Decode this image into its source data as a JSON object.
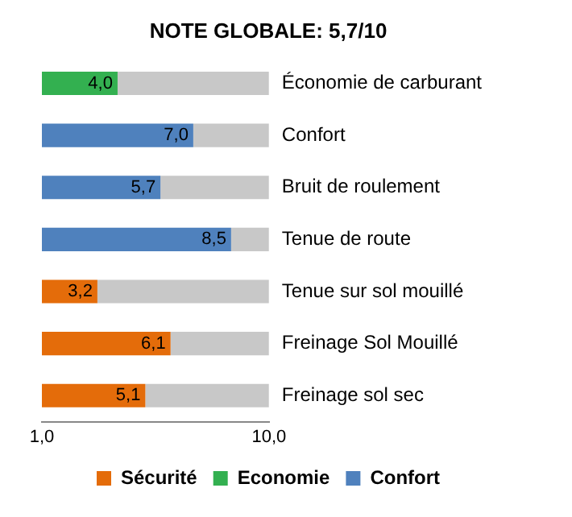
{
  "chart_data": {
    "type": "bar",
    "title": "NOTE GLOBALE: 5,7/10",
    "orientation": "horizontal",
    "stacked": true,
    "categories": [
      "Économie de carburant",
      "Confort",
      "Bruit de roulement",
      "Tenue de route",
      "Tenue sur sol mouillé",
      "Freinage Sol Mouillé",
      "Freinage sol sec"
    ],
    "series": [
      {
        "name": "Sécurité",
        "color": "#e46c0a",
        "values": [
          null,
          null,
          null,
          null,
          3.2,
          6.1,
          5.1
        ],
        "value_labels": [
          null,
          null,
          null,
          null,
          "3,2",
          "6,1",
          "5,1"
        ]
      },
      {
        "name": "Economie",
        "color": "#33b050",
        "values": [
          4.0,
          null,
          null,
          null,
          null,
          null,
          null
        ],
        "value_labels": [
          "4,0",
          null,
          null,
          null,
          null,
          null,
          null
        ]
      },
      {
        "name": "Confort",
        "color": "#4f81bd",
        "values": [
          null,
          7.0,
          5.7,
          8.5,
          null,
          null,
          null
        ],
        "value_labels": [
          null,
          "7,0",
          "5,7",
          "8,5",
          null,
          null,
          null
        ]
      },
      {
        "color": "#c8c8c8",
        "values": [
          6.0,
          3.0,
          4.3,
          1.5,
          6.8,
          3.9,
          4.9
        ]
      }
    ],
    "xlim": [
      1,
      10
    ],
    "xticks": [
      {
        "value": 1,
        "label": "1,0"
      },
      {
        "value": 10,
        "label": "10,0"
      }
    ],
    "grid": false,
    "legend": "bottom"
  }
}
